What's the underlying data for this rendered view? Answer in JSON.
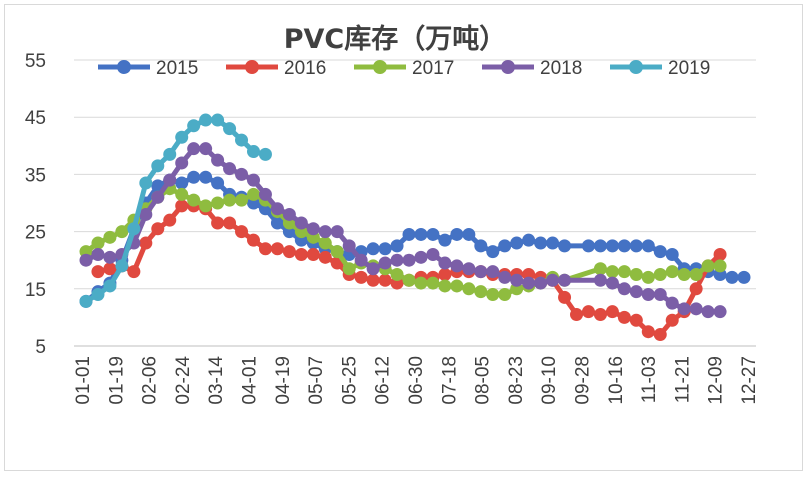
{
  "chart_data": {
    "type": "line",
    "title": "PVC库存（万吨）",
    "xlabel": "",
    "ylabel": "",
    "ylim": [
      5,
      55
    ],
    "yticks": [
      5,
      15,
      25,
      35,
      45,
      55
    ],
    "xticks": [
      "01-01",
      "01-19",
      "02-06",
      "02-24",
      "03-14",
      "04-01",
      "04-19",
      "05-07",
      "05-25",
      "06-12",
      "06-30",
      "07-18",
      "08-05",
      "08-23",
      "09-10",
      "09-28",
      "10-16",
      "11-03",
      "11-21",
      "12-09",
      "12-27"
    ],
    "grid": "horizontal",
    "legend_position": "top",
    "series": [
      {
        "name": "2015",
        "color": "#4472c4",
        "points": [
          [
            0,
            12.8
          ],
          [
            1,
            14.5
          ],
          [
            2,
            16.0
          ],
          [
            3,
            20.0
          ],
          [
            4,
            25.5
          ],
          [
            5,
            30.0
          ],
          [
            6,
            33.0
          ],
          [
            7,
            34.0
          ],
          [
            8,
            33.5
          ],
          [
            9,
            34.5
          ],
          [
            10,
            34.5
          ],
          [
            11,
            33.5
          ],
          [
            12,
            31.5
          ],
          [
            13,
            31.0
          ],
          [
            14,
            30.0
          ],
          [
            15,
            29.0
          ],
          [
            16,
            26.5
          ],
          [
            17,
            25.0
          ],
          [
            18,
            23.5
          ],
          [
            19,
            23.0
          ],
          [
            20,
            22.0
          ],
          [
            21,
            21.5
          ],
          [
            22,
            21.0
          ],
          [
            23,
            21.5
          ],
          [
            24,
            22.0
          ],
          [
            25,
            22.0
          ],
          [
            26,
            22.5
          ],
          [
            27,
            24.5
          ],
          [
            28,
            24.5
          ],
          [
            29,
            24.5
          ],
          [
            30,
            23.5
          ],
          [
            31,
            24.5
          ],
          [
            32,
            24.5
          ],
          [
            33,
            22.5
          ],
          [
            34,
            21.5
          ],
          [
            35,
            22.5
          ],
          [
            36,
            23.0
          ],
          [
            37,
            23.5
          ],
          [
            38,
            23.0
          ],
          [
            39,
            23.0
          ],
          [
            40,
            22.5
          ],
          [
            42,
            22.5
          ],
          [
            43,
            22.5
          ],
          [
            44,
            22.5
          ],
          [
            45,
            22.5
          ],
          [
            46,
            22.5
          ],
          [
            47,
            22.5
          ],
          [
            48,
            21.5
          ],
          [
            49,
            21.0
          ],
          [
            50,
            18.5
          ],
          [
            51,
            18.5
          ],
          [
            52,
            18.0
          ],
          [
            53,
            17.5
          ],
          [
            54,
            17.0
          ],
          [
            55,
            17.0
          ]
        ]
      },
      {
        "name": "2016",
        "color": "#e0493f",
        "points": [
          [
            1,
            18.0
          ],
          [
            2,
            18.5
          ],
          [
            3,
            19.0
          ],
          [
            4,
            18.0
          ],
          [
            5,
            23.0
          ],
          [
            6,
            25.5
          ],
          [
            7,
            27.0
          ],
          [
            8,
            29.5
          ],
          [
            9,
            29.5
          ],
          [
            10,
            29.0
          ],
          [
            11,
            26.5
          ],
          [
            12,
            26.5
          ],
          [
            13,
            25.0
          ],
          [
            14,
            23.5
          ],
          [
            15,
            22.0
          ],
          [
            16,
            22.0
          ],
          [
            17,
            21.5
          ],
          [
            18,
            21.0
          ],
          [
            19,
            21.0
          ],
          [
            20,
            20.5
          ],
          [
            21,
            19.5
          ],
          [
            22,
            17.5
          ],
          [
            23,
            17.0
          ],
          [
            24,
            16.5
          ],
          [
            25,
            16.5
          ],
          [
            26,
            16.0
          ],
          [
            27,
            16.5
          ],
          [
            28,
            17.0
          ],
          [
            29,
            17.0
          ],
          [
            30,
            17.5
          ],
          [
            31,
            18.0
          ],
          [
            32,
            18.0
          ],
          [
            33,
            18.0
          ],
          [
            34,
            17.5
          ],
          [
            35,
            17.5
          ],
          [
            36,
            17.5
          ],
          [
            37,
            17.5
          ],
          [
            38,
            17.0
          ],
          [
            39,
            16.5
          ],
          [
            40,
            13.5
          ],
          [
            41,
            10.5
          ],
          [
            42,
            11.0
          ],
          [
            43,
            10.5
          ],
          [
            44,
            11.0
          ],
          [
            45,
            10.0
          ],
          [
            46,
            9.5
          ],
          [
            47,
            7.5
          ],
          [
            48,
            7.0
          ],
          [
            49,
            9.5
          ],
          [
            50,
            11.0
          ],
          [
            51,
            15.0
          ],
          [
            52,
            19.0
          ],
          [
            53,
            21.0
          ]
        ]
      },
      {
        "name": "2017",
        "color": "#8fbc3f",
        "points": [
          [
            0,
            21.5
          ],
          [
            1,
            23.0
          ],
          [
            2,
            24.0
          ],
          [
            3,
            25.0
          ],
          [
            4,
            27.0
          ],
          [
            5,
            29.0
          ],
          [
            6,
            31.0
          ],
          [
            7,
            32.5
          ],
          [
            8,
            31.5
          ],
          [
            9,
            30.5
          ],
          [
            10,
            29.5
          ],
          [
            11,
            30.0
          ],
          [
            12,
            30.5
          ],
          [
            13,
            30.5
          ],
          [
            14,
            31.5
          ],
          [
            15,
            30.5
          ],
          [
            16,
            28.5
          ],
          [
            17,
            26.5
          ],
          [
            18,
            25.0
          ],
          [
            19,
            24.0
          ],
          [
            20,
            23.0
          ],
          [
            21,
            21.5
          ],
          [
            22,
            18.5
          ],
          [
            23,
            19.5
          ],
          [
            24,
            19.0
          ],
          [
            25,
            18.5
          ],
          [
            26,
            17.5
          ],
          [
            27,
            16.5
          ],
          [
            28,
            16.0
          ],
          [
            29,
            16.0
          ],
          [
            30,
            15.5
          ],
          [
            31,
            15.5
          ],
          [
            32,
            15.0
          ],
          [
            33,
            14.5
          ],
          [
            34,
            14.0
          ],
          [
            35,
            14.0
          ],
          [
            36,
            15.0
          ],
          [
            37,
            15.5
          ],
          [
            38,
            16.0
          ],
          [
            39,
            17.0
          ],
          [
            40,
            16.5
          ],
          [
            43,
            18.5
          ],
          [
            44,
            18.0
          ],
          [
            45,
            18.0
          ],
          [
            46,
            17.5
          ],
          [
            47,
            17.0
          ],
          [
            48,
            17.5
          ],
          [
            49,
            18.0
          ],
          [
            50,
            17.5
          ],
          [
            51,
            17.5
          ],
          [
            52,
            19.0
          ],
          [
            53,
            19.0
          ]
        ]
      },
      {
        "name": "2018",
        "color": "#7b5ea7",
        "points": [
          [
            0,
            20.0
          ],
          [
            1,
            21.0
          ],
          [
            2,
            20.5
          ],
          [
            3,
            21.0
          ],
          [
            4,
            23.0
          ],
          [
            5,
            28.0
          ],
          [
            6,
            31.0
          ],
          [
            7,
            34.0
          ],
          [
            8,
            37.0
          ],
          [
            9,
            39.5
          ],
          [
            10,
            39.5
          ],
          [
            11,
            37.5
          ],
          [
            12,
            36.0
          ],
          [
            13,
            35.0
          ],
          [
            14,
            34.0
          ],
          [
            15,
            31.5
          ],
          [
            16,
            29.0
          ],
          [
            17,
            28.0
          ],
          [
            18,
            26.5
          ],
          [
            19,
            25.5
          ],
          [
            20,
            25.0
          ],
          [
            21,
            25.0
          ],
          [
            22,
            22.5
          ],
          [
            23,
            20.0
          ],
          [
            24,
            18.5
          ],
          [
            25,
            19.5
          ],
          [
            26,
            20.0
          ],
          [
            27,
            20.0
          ],
          [
            28,
            20.5
          ],
          [
            29,
            21.0
          ],
          [
            30,
            19.5
          ],
          [
            31,
            19.0
          ],
          [
            32,
            18.5
          ],
          [
            33,
            18.0
          ],
          [
            34,
            18.0
          ],
          [
            35,
            17.0
          ],
          [
            36,
            16.5
          ],
          [
            37,
            16.0
          ],
          [
            38,
            16.0
          ],
          [
            39,
            16.5
          ],
          [
            40,
            16.5
          ],
          [
            43,
            16.5
          ],
          [
            44,
            16.0
          ],
          [
            45,
            15.0
          ],
          [
            46,
            14.5
          ],
          [
            47,
            14.0
          ],
          [
            48,
            14.0
          ],
          [
            49,
            12.5
          ],
          [
            50,
            11.5
          ],
          [
            51,
            11.5
          ],
          [
            52,
            11.0
          ],
          [
            53,
            11.0
          ]
        ]
      },
      {
        "name": "2019",
        "color": "#4bacc6",
        "points": [
          [
            0,
            12.8
          ],
          [
            1,
            14.0
          ],
          [
            2,
            15.5
          ],
          [
            3,
            19.0
          ],
          [
            4,
            25.5
          ],
          [
            5,
            33.5
          ],
          [
            6,
            36.5
          ],
          [
            7,
            38.5
          ],
          [
            8,
            41.5
          ],
          [
            9,
            43.5
          ],
          [
            10,
            44.5
          ],
          [
            11,
            44.5
          ],
          [
            12,
            43.0
          ],
          [
            13,
            41.0
          ],
          [
            14,
            39.0
          ],
          [
            15,
            38.5
          ]
        ]
      }
    ]
  }
}
